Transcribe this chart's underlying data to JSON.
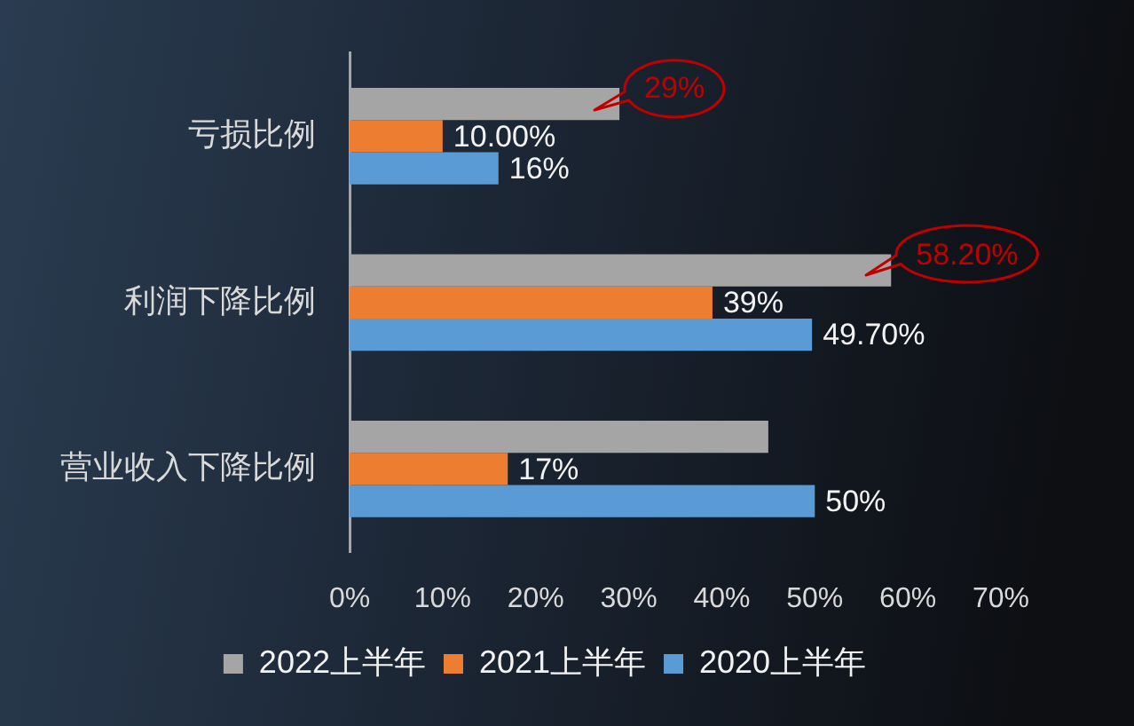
{
  "chart_data": {
    "type": "bar",
    "orientation": "horizontal",
    "categories": [
      "亏损比例",
      "利润下降比例",
      "营业收入下降比例"
    ],
    "series": [
      {
        "name": "2022上半年",
        "color": "#a5a5a5",
        "values": [
          29,
          58.2,
          45
        ],
        "value_labels": [
          "29%",
          "58.20%",
          null
        ]
      },
      {
        "name": "2021上半年",
        "color": "#ed7d31",
        "values": [
          10,
          39,
          17
        ],
        "value_labels": [
          "10.00%",
          "39%",
          "17%"
        ]
      },
      {
        "name": "2020上半年",
        "color": "#5b9bd5",
        "values": [
          16,
          49.7,
          50
        ],
        "value_labels": [
          "16%",
          "49.70%",
          "50%"
        ]
      }
    ],
    "xlim": [
      0,
      70
    ],
    "xticks": [
      {
        "value": 0,
        "label": "0%"
      },
      {
        "value": 10,
        "label": "10%"
      },
      {
        "value": 20,
        "label": "20%"
      },
      {
        "value": 30,
        "label": "30%"
      },
      {
        "value": 40,
        "label": "40%"
      },
      {
        "value": 50,
        "label": "50%"
      },
      {
        "value": 60,
        "label": "60%"
      },
      {
        "value": 70,
        "label": "70%"
      }
    ],
    "legend": "bottom"
  }
}
